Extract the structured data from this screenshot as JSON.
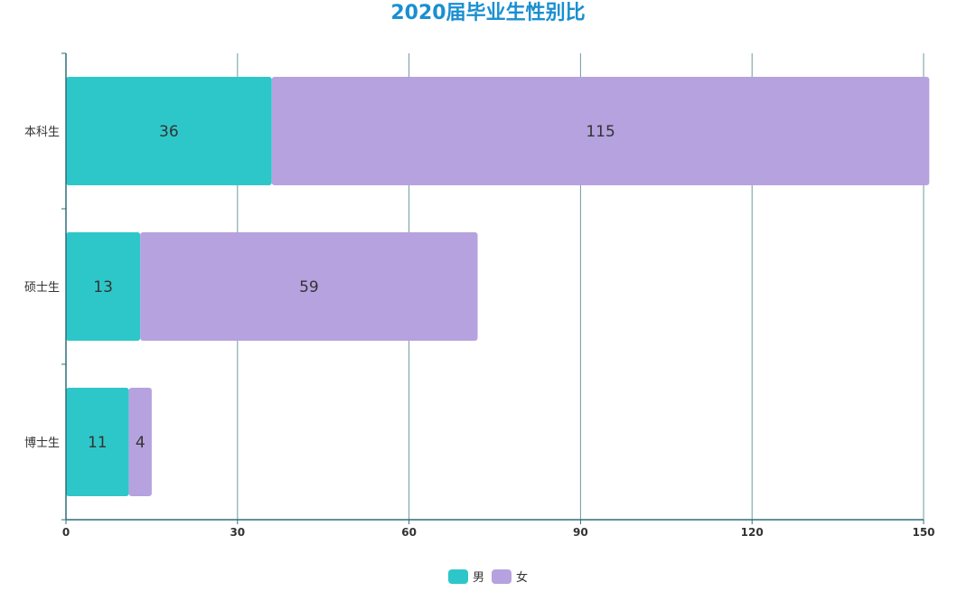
{
  "chart_data": {
    "type": "bar",
    "orientation": "horizontal",
    "stacked": true,
    "title": "2020届毕业生性别比",
    "categories": [
      "本科生",
      "硕士生",
      "博士生"
    ],
    "series": [
      {
        "name": "男",
        "values": [
          36,
          13,
          11
        ],
        "color": "#2ec7c9"
      },
      {
        "name": "女",
        "values": [
          115,
          59,
          4
        ],
        "color": "#b6a2de"
      }
    ],
    "xlim": [
      0,
      150
    ],
    "xticks": [
      0,
      30,
      60,
      90,
      120,
      150
    ],
    "grid": true,
    "legend": "bottom-center",
    "axis_color": "#2f6f7a",
    "title_color": "#1a8fd1"
  }
}
